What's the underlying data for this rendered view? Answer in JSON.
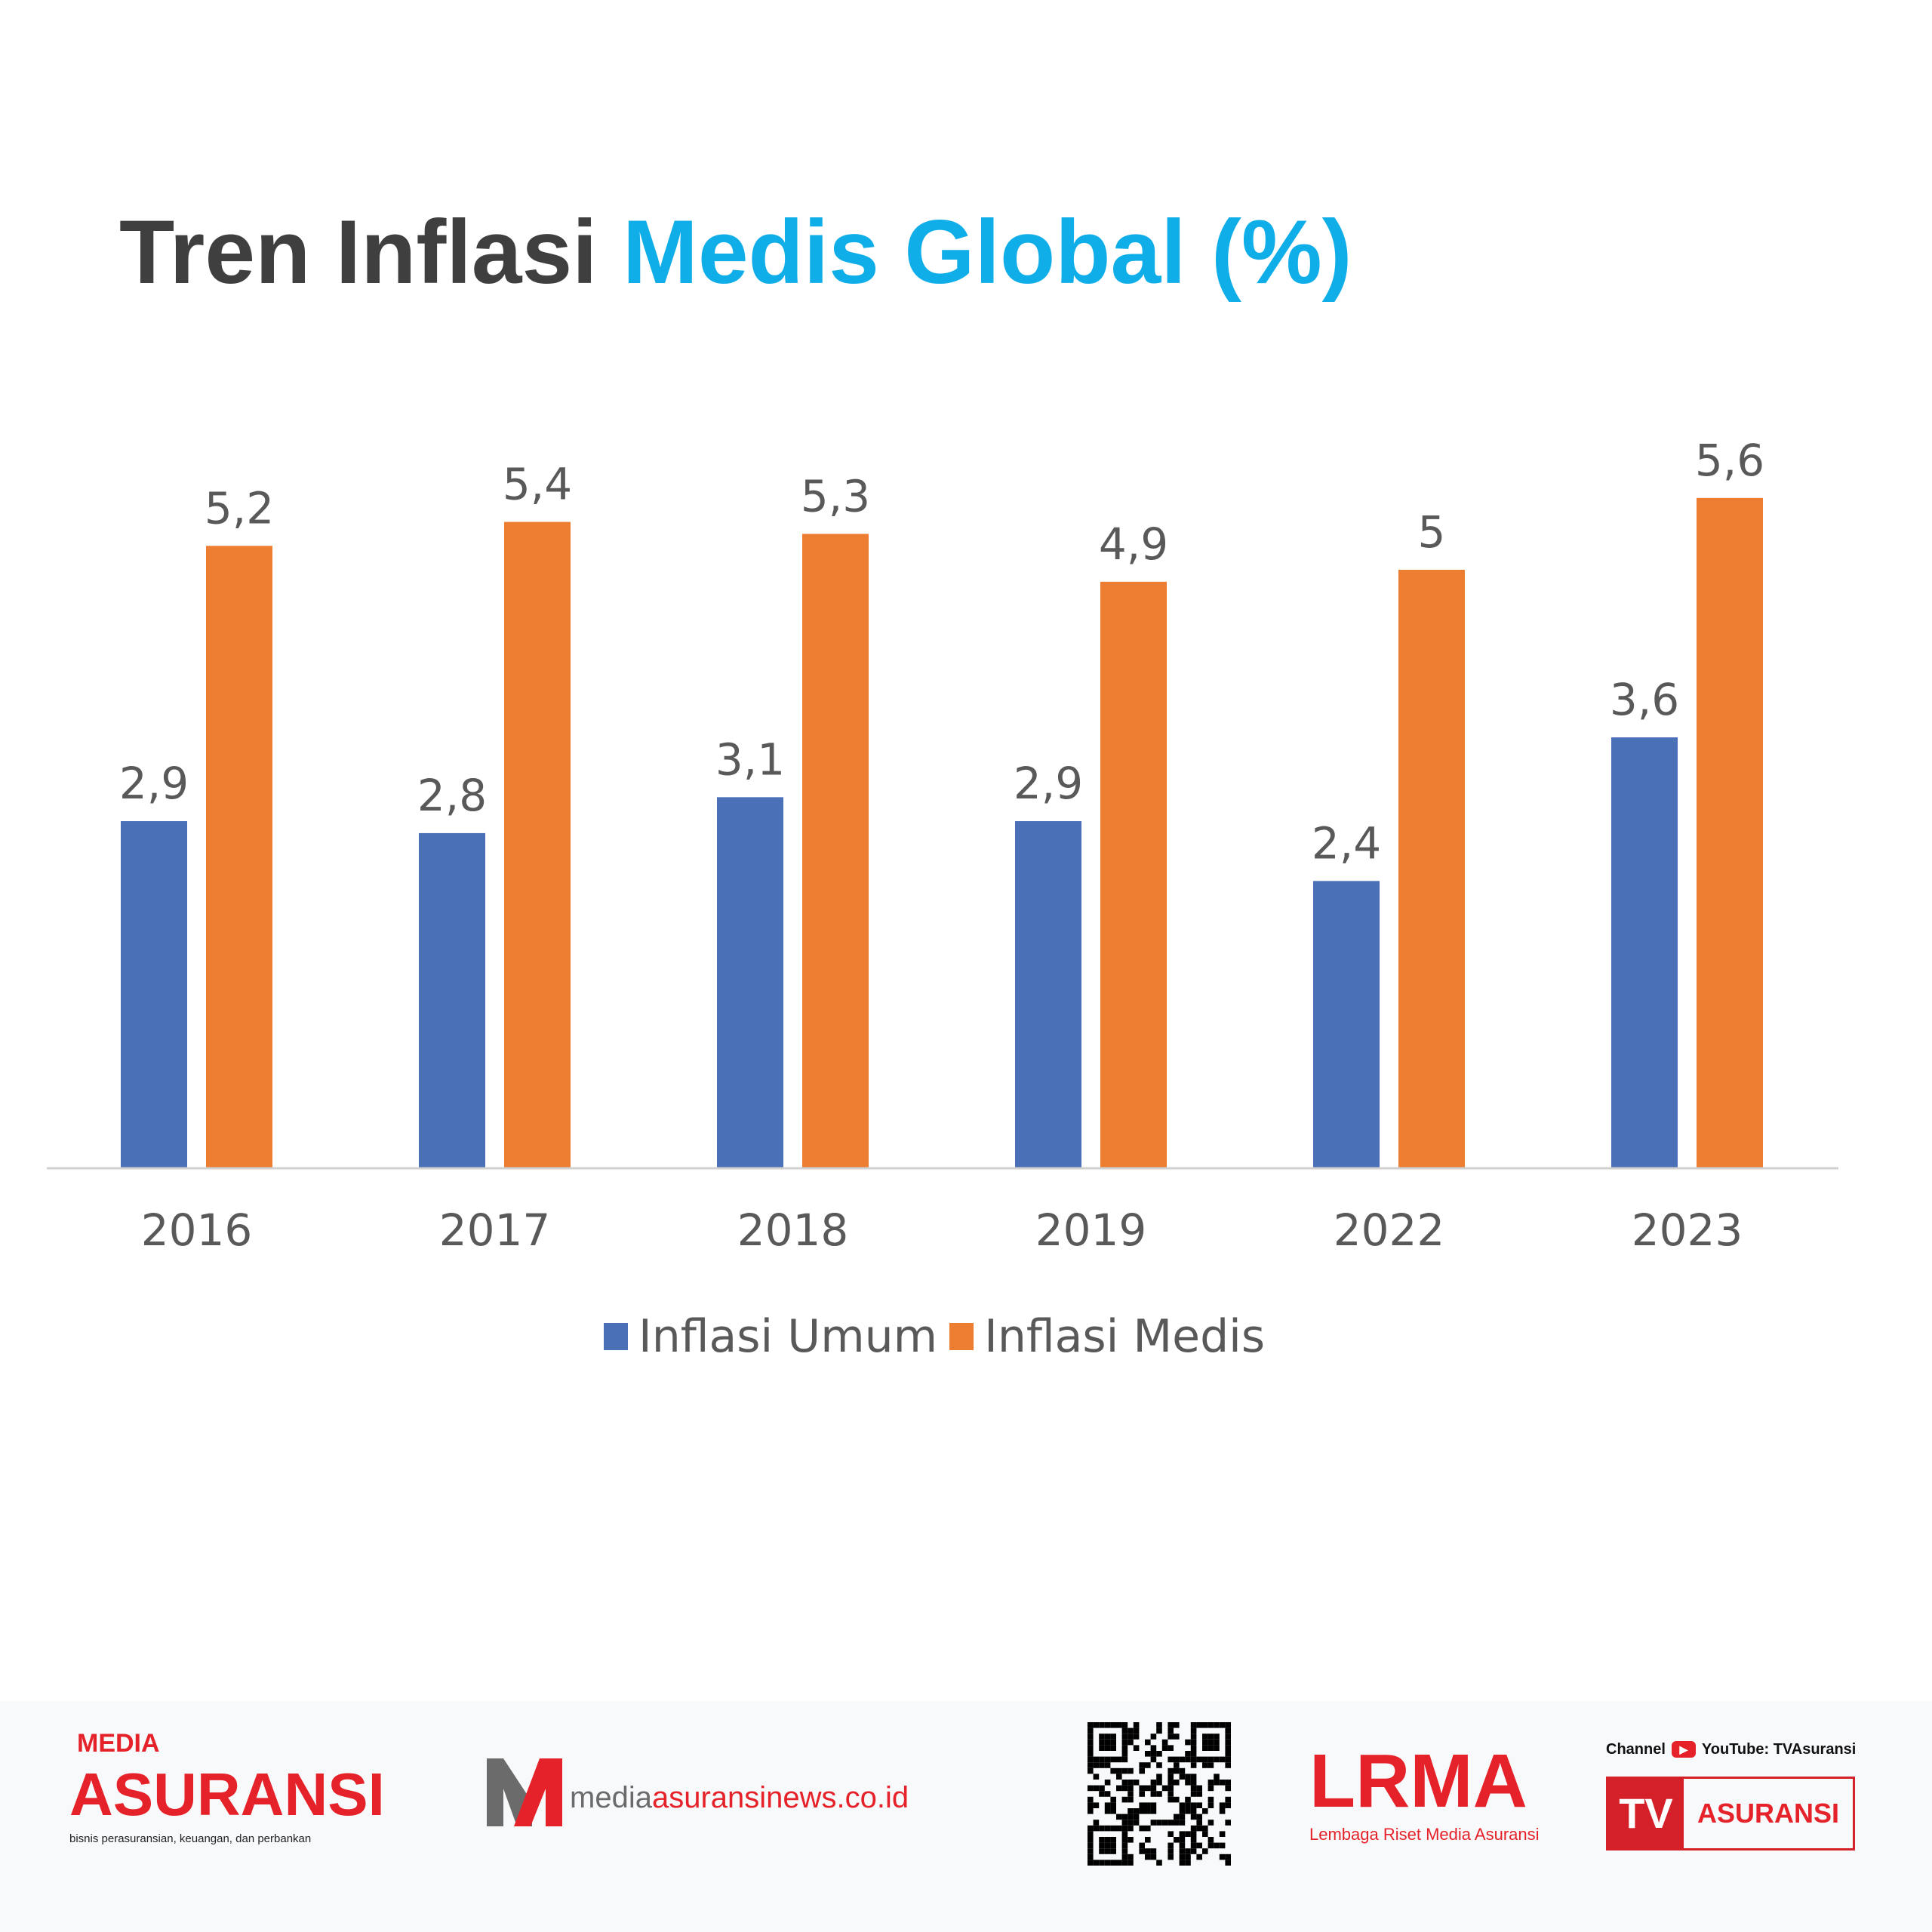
{
  "title": {
    "part1": "Tren Inflasi",
    "part2": "Medis Global (%)"
  },
  "chart_data": {
    "type": "bar",
    "title": "Tren Inflasi Medis Global (%)",
    "categories": [
      "2016",
      "2017",
      "2018",
      "2019",
      "2022",
      "2023"
    ],
    "series": [
      {
        "name": "Inflasi Umum",
        "color": "#4a70b7",
        "values": [
          2.9,
          2.8,
          3.1,
          2.9,
          2.4,
          3.6
        ],
        "labels": [
          "2,9",
          "2,8",
          "3,1",
          "2,9",
          "2,4",
          "3,6"
        ]
      },
      {
        "name": "Inflasi Medis",
        "color": "#ed7d31",
        "values": [
          5.2,
          5.4,
          5.3,
          4.9,
          5,
          5.6
        ],
        "labels": [
          "5,2",
          "5,4",
          "5,3",
          "4,9",
          "5",
          "5,6"
        ]
      }
    ],
    "ylim": [
      0,
      6
    ],
    "grid": false,
    "legend": "bottom"
  },
  "footer": {
    "media_asuransi": {
      "top": "MEDIA",
      "main": "ASURANSI",
      "tagline": "bisnis perasuransian, keuangan, dan perbankan"
    },
    "website": {
      "part1": "media",
      "part2": "asuransinews.co.id"
    },
    "lrma": {
      "main": "LRMA",
      "sub": "Lembaga Riset Media Asuransi"
    },
    "tv": {
      "channel": "Channel",
      "youtube": "YouTube: TVAsuransi",
      "tv": "TV",
      "asuransi": "ASURANSI"
    }
  }
}
